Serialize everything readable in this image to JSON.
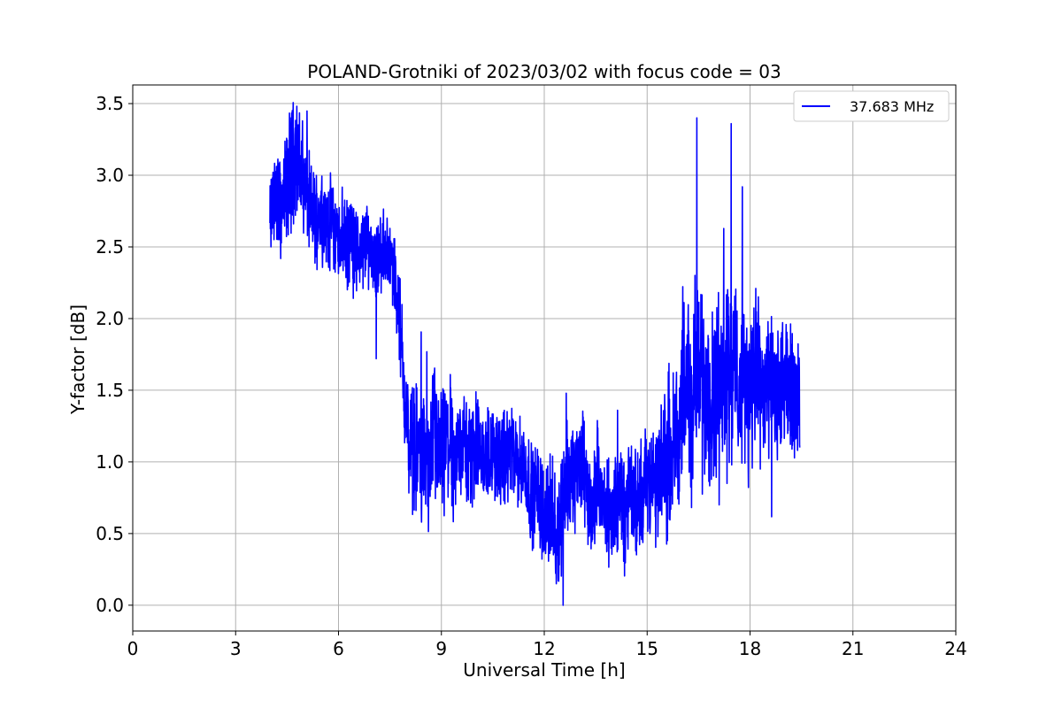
{
  "chart_data": {
    "type": "line",
    "title": "POLAND-Grotniki of 2023/03/02 with focus code = 03",
    "xlabel": "Universal Time [h]",
    "ylabel": "Y-factor [dB]",
    "xlim": [
      0,
      24
    ],
    "ylim": [
      -0.18,
      3.63
    ],
    "xticks": [
      0,
      3,
      6,
      9,
      12,
      15,
      18,
      21,
      24
    ],
    "xtick_labels": [
      "0",
      "3",
      "6",
      "9",
      "12",
      "15",
      "18",
      "21",
      "24"
    ],
    "yticks": [
      0.0,
      0.5,
      1.0,
      1.5,
      2.0,
      2.5,
      3.0,
      3.5
    ],
    "ytick_labels": [
      "0.0",
      "0.5",
      "1.0",
      "1.5",
      "2.0",
      "2.5",
      "3.0",
      "3.5"
    ],
    "grid": true,
    "legend_position": "top-right",
    "series": [
      {
        "name": "37.683 MHz",
        "color": "#0000ff",
        "x": [
          4.0,
          4.15,
          4.3,
          4.45,
          4.6,
          4.75,
          4.9,
          5.05,
          5.2,
          5.35,
          5.5,
          5.65,
          5.8,
          5.95,
          6.1,
          6.25,
          6.4,
          6.55,
          6.7,
          6.85,
          7.0,
          7.15,
          7.3,
          7.45,
          7.6,
          7.75,
          7.9,
          8.05,
          8.2,
          8.35,
          8.5,
          8.65,
          8.8,
          8.95,
          9.1,
          9.25,
          9.4,
          9.55,
          9.7,
          9.85,
          10.0,
          10.15,
          10.3,
          10.45,
          10.6,
          10.75,
          10.9,
          11.05,
          11.2,
          11.35,
          11.5,
          11.65,
          11.8,
          11.95,
          12.1,
          12.25,
          12.4,
          12.55,
          12.7,
          12.85,
          13.0,
          13.15,
          13.3,
          13.45,
          13.6,
          13.75,
          13.9,
          14.05,
          14.2,
          14.35,
          14.5,
          14.65,
          14.8,
          14.95,
          15.1,
          15.25,
          15.4,
          15.55,
          15.7,
          15.85,
          16.0,
          16.15,
          16.3,
          16.45,
          16.6,
          16.75,
          16.9,
          17.05,
          17.2,
          17.35,
          17.5,
          17.65,
          17.8,
          17.95,
          18.1,
          18.25,
          18.4,
          18.55,
          18.7,
          18.85,
          19.0,
          19.15,
          19.3,
          19.45
        ],
        "values": [
          2.65,
          2.9,
          2.75,
          2.85,
          3.05,
          3.15,
          3.0,
          2.9,
          2.75,
          2.7,
          2.8,
          2.65,
          2.7,
          2.55,
          2.6,
          2.5,
          2.55,
          2.45,
          2.5,
          2.55,
          2.45,
          2.4,
          2.5,
          2.45,
          2.35,
          2.1,
          1.55,
          1.15,
          1.05,
          1.1,
          1.05,
          0.95,
          1.2,
          1.0,
          1.05,
          1.15,
          0.95,
          1.2,
          1.1,
          1.0,
          1.15,
          1.05,
          1.0,
          1.1,
          1.05,
          0.95,
          1.05,
          1.1,
          0.95,
          1.0,
          0.9,
          0.75,
          0.8,
          0.65,
          0.7,
          0.55,
          0.5,
          0.75,
          0.9,
          0.85,
          1.0,
          0.95,
          0.75,
          0.7,
          0.8,
          0.65,
          0.6,
          0.7,
          0.75,
          0.6,
          0.8,
          0.7,
          0.75,
          0.9,
          0.85,
          0.8,
          0.95,
          1.0,
          1.05,
          1.2,
          1.35,
          1.45,
          1.4,
          1.55,
          1.6,
          1.5,
          1.45,
          1.55,
          1.6,
          1.7,
          1.65,
          1.55,
          1.6,
          1.5,
          1.55,
          1.65,
          1.5,
          1.45,
          1.55,
          1.4,
          1.5,
          1.45,
          1.55,
          1.3
        ],
        "noise_amplitude": [
          0.22,
          0.25,
          0.28,
          0.3,
          0.32,
          0.3,
          0.28,
          0.26,
          0.25,
          0.24,
          0.22,
          0.22,
          0.22,
          0.22,
          0.22,
          0.22,
          0.22,
          0.21,
          0.21,
          0.21,
          0.21,
          0.2,
          0.2,
          0.2,
          0.2,
          0.25,
          0.32,
          0.32,
          0.34,
          0.34,
          0.34,
          0.34,
          0.34,
          0.34,
          0.32,
          0.32,
          0.3,
          0.3,
          0.28,
          0.28,
          0.26,
          0.26,
          0.25,
          0.25,
          0.25,
          0.25,
          0.24,
          0.24,
          0.24,
          0.24,
          0.24,
          0.24,
          0.26,
          0.26,
          0.28,
          0.28,
          0.3,
          0.3,
          0.3,
          0.3,
          0.28,
          0.28,
          0.28,
          0.28,
          0.27,
          0.27,
          0.27,
          0.27,
          0.27,
          0.27,
          0.27,
          0.27,
          0.27,
          0.27,
          0.3,
          0.3,
          0.3,
          0.32,
          0.34,
          0.38,
          0.42,
          0.44,
          0.46,
          0.46,
          0.46,
          0.46,
          0.46,
          0.46,
          0.46,
          0.46,
          0.46,
          0.46,
          0.44,
          0.44,
          0.42,
          0.42,
          0.4,
          0.4,
          0.38,
          0.38,
          0.36,
          0.36,
          0.34,
          0.3
        ],
        "spikes": [
          [
            4.65,
            3.45
          ],
          [
            4.95,
            3.38
          ],
          [
            7.1,
            1.72
          ],
          [
            12.35,
            0.15
          ],
          [
            12.55,
            0.0
          ],
          [
            16.45,
            3.4
          ],
          [
            17.1,
            0.7
          ],
          [
            17.45,
            3.36
          ],
          [
            18.3,
            0.95
          ]
        ]
      }
    ]
  }
}
